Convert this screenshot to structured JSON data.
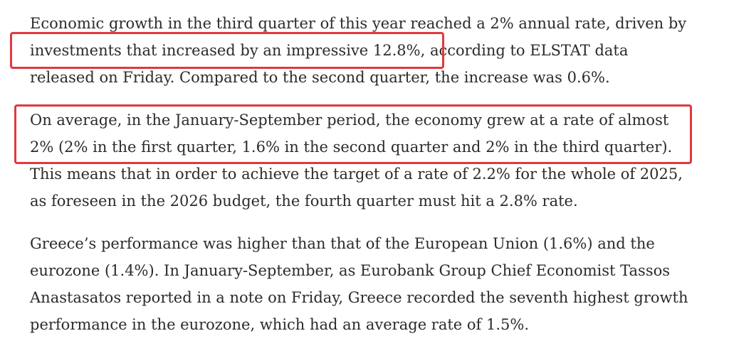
{
  "article": {
    "paragraphs": [
      {
        "lines": [
          "Economic growth in the third quarter of this year reached a 2% annual rate, driven by",
          "investments that increased by an impressive 12.8%, according to ELSTAT data",
          "released on Friday. Compared to the second quarter, the increase was 0.6%."
        ]
      },
      {
        "lines": [
          "On average, in the January-September period, the economy grew at a rate of almost",
          "2% (2% in the first quarter, 1.6% in the second quarter and 2% in the third quarter).",
          "This means that in order to achieve the target of a rate of 2.2% for the whole of 2025,",
          "as foreseen in the 2026 budget, the fourth quarter must hit a 2.8% rate."
        ]
      },
      {
        "lines": [
          "Greece’s performance was higher than that of the European Union (1.6%) and the",
          "eurozone (1.4%). In January-September, as Eurobank Group Chief Economist Tassos",
          "Anastasatos reported in a note on Friday, Greece recorded the seventh highest growth",
          "performance in the eurozone, which had an average rate of 1.5%."
        ]
      }
    ]
  },
  "annotations": {
    "highlight_color": "#e0393e"
  }
}
